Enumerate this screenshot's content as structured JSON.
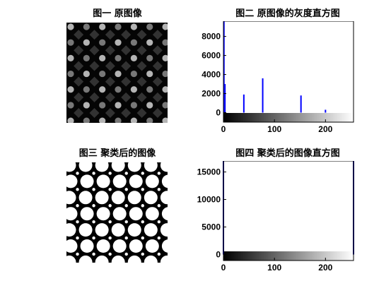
{
  "chart_data": [
    {
      "type": "image",
      "title": "图一 原图像",
      "pattern": "grayscale-dot-grid",
      "colors": {
        "background": "#050505",
        "dots_bright": "#b4b4b4",
        "dots_mid": "#787878",
        "diamonds": "#323232"
      }
    },
    {
      "type": "bar",
      "title": "图二 原图像的灰度直方图",
      "xlabel": "",
      "ylabel": "",
      "xlim": [
        0,
        255
      ],
      "ylim": [
        -1000,
        9600
      ],
      "xticks": [
        "0",
        "100",
        "200"
      ],
      "yticks": [
        "0",
        "2000",
        "4000",
        "6000",
        "8000"
      ],
      "peaks": [
        {
          "x": 1,
          "y": 9600
        },
        {
          "x": 3,
          "y": 3000
        },
        {
          "x": 40,
          "y": 1900
        },
        {
          "x": 77,
          "y": 3600
        },
        {
          "x": 152,
          "y": 1800
        },
        {
          "x": 200,
          "y": 300
        }
      ],
      "colorbar": "grayscale",
      "bar_color": "#0000ff"
    },
    {
      "type": "image",
      "title": "图三 聚类后的图像",
      "pattern": "binary-dot-grid",
      "colors": {
        "background": "#000000",
        "dots": "#ffffff"
      }
    },
    {
      "type": "bar",
      "title": "图四 聚类后的图像直方图",
      "xlabel": "",
      "ylabel": "",
      "xlim": [
        0,
        255
      ],
      "ylim": [
        -1100,
        17000
      ],
      "xticks": [
        "0",
        "100",
        "200"
      ],
      "yticks": [
        "0",
        "5000",
        "10000",
        "15000"
      ],
      "peaks": [
        {
          "x": 0,
          "y": 17000
        },
        {
          "x": 255,
          "y": 17000
        }
      ],
      "colorbar": "grayscale",
      "bar_color": "#00008b"
    }
  ]
}
